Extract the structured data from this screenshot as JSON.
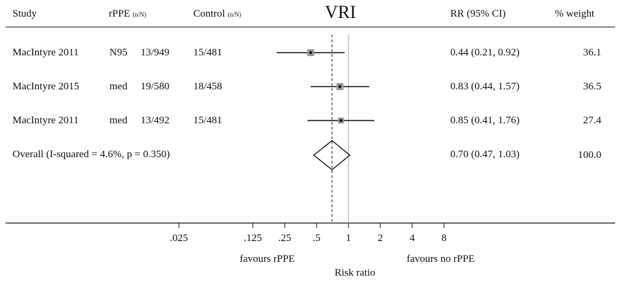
{
  "header": {
    "study": "Study",
    "rppe": "rPPE",
    "rppe_unit": "(n/N)",
    "control": "Control",
    "control_unit": "(n/N)",
    "title": "VRI",
    "rr": "RR (95% CI)",
    "weight": "% weight"
  },
  "rows": [
    {
      "study": "MacIntyre 2011",
      "type": "N95",
      "rppe": "13/949",
      "control": "15/481",
      "rr_text": "0.44 (0.21, 0.92)",
      "weight": "36.1"
    },
    {
      "study": "MacIntyre 2015",
      "type": "med",
      "rppe": "19/580",
      "control": "18/458",
      "rr_text": "0.83 (0.44, 1.57)",
      "weight": "36.5"
    },
    {
      "study": "MacIntyre 2011",
      "type": "med",
      "rppe": "13/492",
      "control": "15/481",
      "rr_text": "0.85 (0.41, 1.76)",
      "weight": "27.4"
    }
  ],
  "overall": {
    "label": "Overall  (I-squared = 4.6%, p = 0.350)",
    "rr_text": "0.70 (0.47, 1.03)",
    "weight": "100.0"
  },
  "footer": {
    "favours_left": "favours rPPE",
    "favours_right": "favours no rPPE",
    "xlabel": "Risk ratio"
  },
  "chart_data": {
    "type": "forest",
    "title": "VRI",
    "xlabel": "Risk ratio",
    "x_scale": "log",
    "x_ticks": [
      0.025,
      0.125,
      0.25,
      0.5,
      1,
      2,
      4,
      8
    ],
    "x_tick_labels": [
      ".025",
      ".125",
      ".25",
      ".5",
      "1",
      "2",
      "4",
      "8"
    ],
    "null_line": 1,
    "pooled_line": 0.7,
    "studies": [
      {
        "study": "MacIntyre 2011 N95",
        "rr": 0.44,
        "lo": 0.21,
        "hi": 0.92,
        "weight": 36.1
      },
      {
        "study": "MacIntyre 2015 med",
        "rr": 0.83,
        "lo": 0.44,
        "hi": 1.57,
        "weight": 36.5
      },
      {
        "study": "MacIntyre 2011 med",
        "rr": 0.85,
        "lo": 0.41,
        "hi": 1.76,
        "weight": 27.4
      }
    ],
    "overall": {
      "rr": 0.7,
      "lo": 0.47,
      "hi": 1.03,
      "weight": 100.0
    }
  }
}
